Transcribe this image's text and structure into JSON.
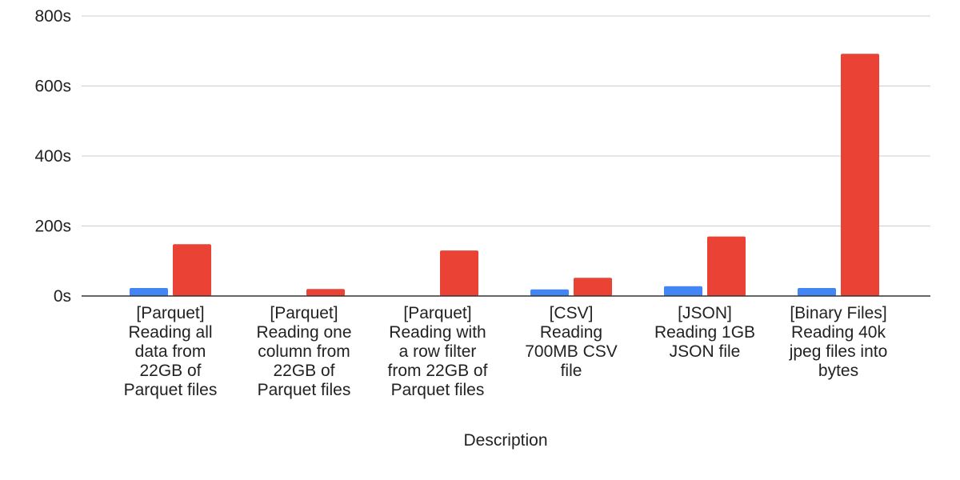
{
  "chart_data": {
    "type": "bar",
    "title": "",
    "xlabel": "Description",
    "ylabel": "",
    "ylim": [
      0,
      800
    ],
    "y_ticks": [
      0,
      200,
      400,
      600,
      800
    ],
    "y_tick_labels": [
      "0s",
      "200s",
      "400s",
      "600s",
      "800s"
    ],
    "grid": true,
    "categories": [
      [
        "[Parquet]",
        "Reading all",
        "data from",
        "22GB of",
        "Parquet files"
      ],
      [
        "[Parquet]",
        "Reading one",
        "column from",
        "22GB of",
        "Parquet files"
      ],
      [
        "[Parquet]",
        "Reading with",
        "a row filter",
        "from 22GB of",
        "Parquet files"
      ],
      [
        "[CSV]",
        "Reading",
        "700MB CSV",
        "file"
      ],
      [
        "[JSON]",
        "Reading 1GB",
        "JSON file"
      ],
      [
        "[Binary Files]",
        "Reading 40k",
        "jpeg files into",
        "bytes"
      ]
    ],
    "series": [
      {
        "values": [
          23,
          0,
          0,
          19,
          28,
          23
        ],
        "color": "#4285f4"
      },
      {
        "values": [
          148,
          20,
          130,
          52,
          170,
          692
        ],
        "color": "#ea4335"
      }
    ],
    "colors": {
      "grid": "#cccccc",
      "axis": "#333333",
      "text": "#222222"
    }
  }
}
